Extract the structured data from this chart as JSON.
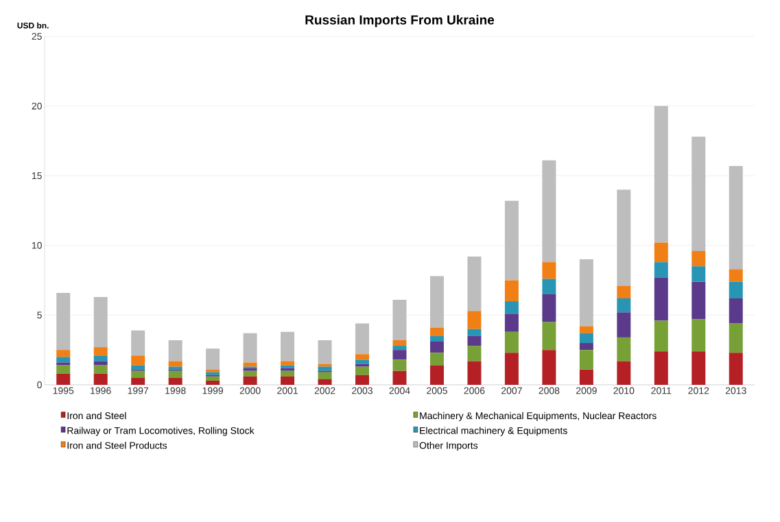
{
  "chart_data": {
    "type": "bar",
    "title": "Russian Imports From Ukraine",
    "ylabel": "USD bn.",
    "stacked": true,
    "grid": "y",
    "legend": "bottom",
    "categories": [
      "1995",
      "1996",
      "1997",
      "1998",
      "1999",
      "2000",
      "2001",
      "2002",
      "2003",
      "2004",
      "2005",
      "2006",
      "2007",
      "2008",
      "2009",
      "2010",
      "2011",
      "2012",
      "2013"
    ],
    "ylim": [
      0,
      25
    ],
    "yticks": [
      0,
      5,
      10,
      15,
      20,
      25
    ],
    "series": [
      {
        "name": "Iron and Steel",
        "color": "#b52025",
        "values": [
          0.8,
          0.8,
          0.5,
          0.5,
          0.3,
          0.6,
          0.6,
          0.4,
          0.7,
          1.0,
          1.4,
          1.7,
          2.3,
          2.5,
          1.1,
          1.7,
          2.4,
          2.4,
          2.3
        ]
      },
      {
        "name": "Machinery & Mechanical Equipments, Nuclear Reactors",
        "color": "#77a136",
        "values": [
          0.6,
          0.6,
          0.5,
          0.5,
          0.3,
          0.4,
          0.4,
          0.5,
          0.6,
          0.8,
          0.9,
          1.1,
          1.5,
          2.0,
          1.4,
          1.7,
          2.2,
          2.3,
          2.1
        ]
      },
      {
        "name": "Railway or Tram Locomotives, Rolling Stock",
        "color": "#5b3a8c",
        "values": [
          0.2,
          0.3,
          0.1,
          0.1,
          0.1,
          0.2,
          0.2,
          0.1,
          0.2,
          0.7,
          0.8,
          0.7,
          1.3,
          2.0,
          0.5,
          1.8,
          3.1,
          2.7,
          1.8
        ]
      },
      {
        "name": "Electrical machinery & Equipments",
        "color": "#2795b3",
        "values": [
          0.4,
          0.4,
          0.3,
          0.2,
          0.2,
          0.1,
          0.2,
          0.3,
          0.3,
          0.3,
          0.4,
          0.5,
          0.9,
          1.1,
          0.7,
          1.0,
          1.1,
          1.1,
          1.2
        ]
      },
      {
        "name": "Iron and Steel Products",
        "color": "#f07f16",
        "values": [
          0.5,
          0.6,
          0.7,
          0.4,
          0.2,
          0.3,
          0.3,
          0.2,
          0.4,
          0.4,
          0.6,
          1.3,
          1.5,
          1.2,
          0.5,
          0.9,
          1.4,
          1.1,
          0.9
        ]
      },
      {
        "name": "Other Imports",
        "color": "#bdbdbd",
        "values": [
          4.1,
          3.6,
          1.8,
          1.5,
          1.5,
          2.1,
          2.1,
          1.7,
          2.2,
          2.9,
          3.7,
          3.9,
          5.7,
          7.3,
          4.8,
          6.9,
          9.8,
          8.2,
          7.4
        ]
      }
    ]
  }
}
